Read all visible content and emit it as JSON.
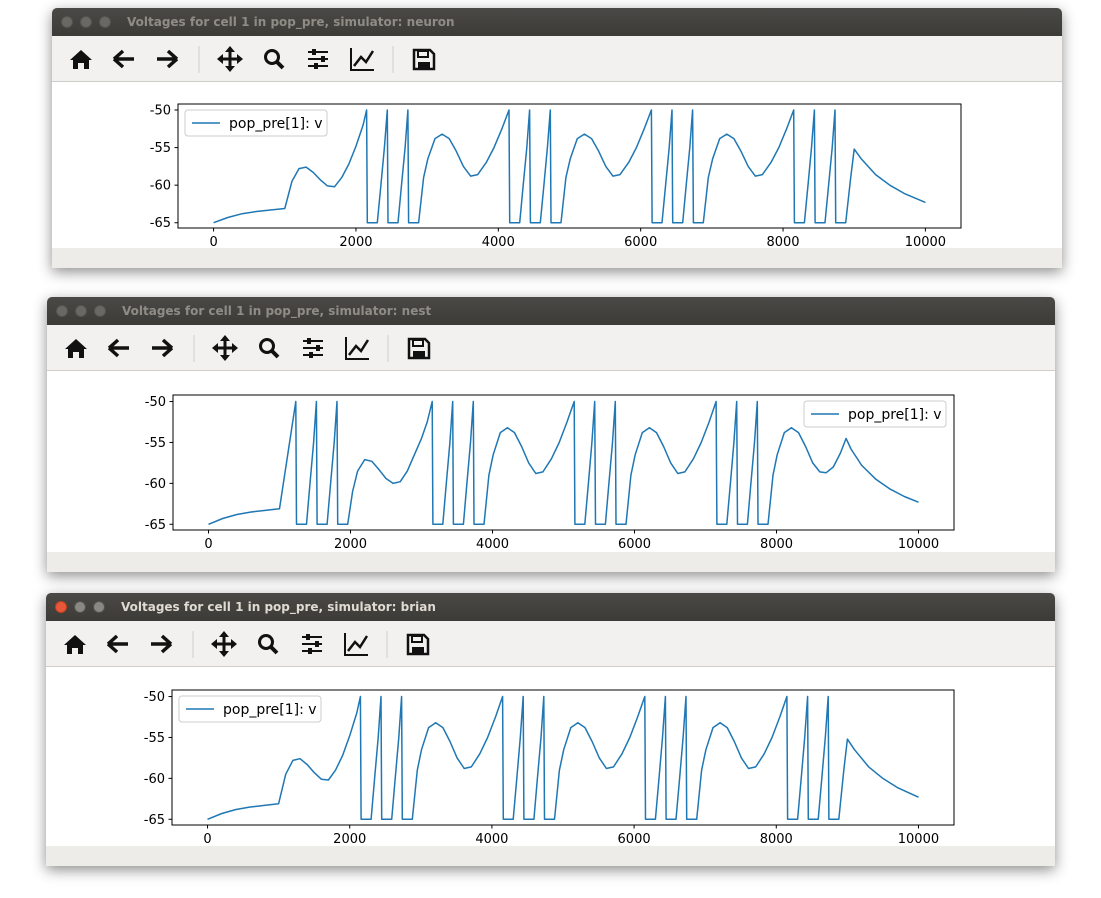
{
  "windows": [
    {
      "title": "Voltages for cell 1 in pop_pre, simulator: neuron"
    },
    {
      "title": "Voltages for cell 1 in pop_pre, simulator: nest"
    },
    {
      "title": "Voltages for cell 1 in pop_pre, simulator: brian"
    }
  ],
  "chart_data": [
    {
      "type": "line",
      "legend": "upper left",
      "x": [
        0,
        200,
        400,
        600,
        800,
        1000,
        1100,
        1200,
        1300,
        1400,
        1500,
        1600,
        1700,
        1800,
        1900,
        2000,
        2100,
        2150,
        2160,
        2300,
        2350,
        2400,
        2440,
        2450,
        2590,
        2640,
        2690,
        2730,
        2740,
        2880,
        2950,
        3010,
        3110,
        3210,
        3310,
        3410,
        3510,
        3610,
        3710,
        3830,
        3940,
        4050,
        4150,
        4160,
        4300,
        4350,
        4400,
        4440,
        4450,
        4590,
        4640,
        4690,
        4730,
        4740,
        4880,
        4950,
        5010,
        5110,
        5210,
        5310,
        5410,
        5510,
        5610,
        5710,
        5830,
        5940,
        6050,
        6150,
        6160,
        6300,
        6350,
        6400,
        6440,
        6450,
        6590,
        6640,
        6690,
        6730,
        6740,
        6880,
        6950,
        7010,
        7110,
        7210,
        7310,
        7410,
        7510,
        7610,
        7710,
        7830,
        7940,
        8050,
        8150,
        8160,
        8300,
        8350,
        8400,
        8440,
        8450,
        8590,
        8640,
        8690,
        8730,
        8740,
        8880,
        8950,
        9000,
        9100,
        9300,
        9500,
        9700,
        9900,
        10000
      ],
      "series": [
        {
          "name": "pop_pre[1]: v",
          "color": "#1f77b4",
          "values": [
            -65,
            -64.3,
            -63.8,
            -63.5,
            -63.3,
            -63.1,
            -59.5,
            -57.8,
            -57.6,
            -58.3,
            -59.3,
            -60.1,
            -60.2,
            -59,
            -57.2,
            -54.8,
            -52,
            -50,
            -65,
            -65,
            -60,
            -55,
            -50,
            -65,
            -65,
            -60,
            -55,
            -50,
            -65,
            -65,
            -59,
            -56.5,
            -53.8,
            -53.2,
            -53.8,
            -55.5,
            -57.5,
            -58.8,
            -58.6,
            -57,
            -55,
            -52.5,
            -50,
            -65,
            -65,
            -60,
            -55,
            -50,
            -65,
            -65,
            -60,
            -55,
            -50,
            -65,
            -65,
            -59,
            -56.5,
            -53.8,
            -53.2,
            -53.8,
            -55.5,
            -57.5,
            -58.8,
            -58.6,
            -57,
            -55,
            -52.5,
            -50,
            -65,
            -65,
            -60,
            -55,
            -50,
            -65,
            -65,
            -60,
            -55,
            -50,
            -65,
            -65,
            -59,
            -56.5,
            -53.8,
            -53.2,
            -53.8,
            -55.5,
            -57.5,
            -58.8,
            -58.6,
            -57,
            -55,
            -52.5,
            -50,
            -65,
            -65,
            -60,
            -55,
            -50,
            -65,
            -65,
            -60,
            -55,
            -50,
            -65,
            -65,
            -59,
            -55.2,
            -56.5,
            -58.6,
            -60,
            -61.1,
            -61.9,
            -62.3
          ]
        }
      ],
      "xlim": [
        -500,
        10500
      ],
      "xticks": [
        0,
        2000,
        4000,
        6000,
        8000,
        10000
      ],
      "ylim": [
        -65.7,
        -49.2
      ],
      "yticks": [
        -65,
        -60,
        -55,
        -50
      ]
    },
    {
      "type": "line",
      "legend": "upper right",
      "x": [
        0,
        200,
        400,
        600,
        800,
        1000,
        1230,
        1240,
        1380,
        1430,
        1480,
        1520,
        1530,
        1670,
        1720,
        1770,
        1810,
        1820,
        1960,
        2030,
        2100,
        2200,
        2300,
        2400,
        2500,
        2600,
        2700,
        2800,
        2900,
        3000,
        3080,
        3150,
        3160,
        3300,
        3350,
        3400,
        3440,
        3450,
        3590,
        3640,
        3690,
        3730,
        3740,
        3880,
        3950,
        4010,
        4110,
        4210,
        4310,
        4410,
        4510,
        4610,
        4710,
        4830,
        4940,
        5050,
        5150,
        5160,
        5300,
        5350,
        5400,
        5440,
        5450,
        5590,
        5640,
        5690,
        5730,
        5740,
        5880,
        5950,
        6010,
        6110,
        6210,
        6310,
        6410,
        6510,
        6610,
        6710,
        6830,
        6940,
        7050,
        7150,
        7160,
        7300,
        7350,
        7400,
        7440,
        7450,
        7590,
        7640,
        7690,
        7730,
        7740,
        7880,
        7950,
        8010,
        8110,
        8210,
        8310,
        8410,
        8510,
        8610,
        8700,
        8800,
        8900,
        8980,
        9050,
        9200,
        9400,
        9600,
        9800,
        10000
      ],
      "series": [
        {
          "name": "pop_pre[1]: v",
          "color": "#1f77b4",
          "values": [
            -65,
            -64.3,
            -63.8,
            -63.5,
            -63.3,
            -63.1,
            -50,
            -65,
            -65,
            -60,
            -55,
            -50,
            -65,
            -65,
            -60,
            -55,
            -50,
            -65,
            -65,
            -61,
            -58.5,
            -57.1,
            -57.3,
            -58.3,
            -59.4,
            -60,
            -59.8,
            -58.5,
            -56.5,
            -54.5,
            -52.5,
            -50,
            -65,
            -65,
            -60,
            -55,
            -50,
            -65,
            -65,
            -60,
            -55,
            -50,
            -65,
            -65,
            -59,
            -56.5,
            -53.8,
            -53.2,
            -53.8,
            -55.5,
            -57.5,
            -58.8,
            -58.6,
            -57,
            -55,
            -52.5,
            -50,
            -65,
            -65,
            -60,
            -55,
            -50,
            -65,
            -65,
            -60,
            -55,
            -50,
            -65,
            -65,
            -59,
            -56.5,
            -53.8,
            -53.2,
            -53.8,
            -55.5,
            -57.5,
            -58.8,
            -58.6,
            -57,
            -55,
            -52.5,
            -50,
            -65,
            -65,
            -60,
            -55,
            -50,
            -65,
            -65,
            -60,
            -55,
            -50,
            -65,
            -65,
            -59,
            -56.5,
            -53.8,
            -53.2,
            -53.8,
            -55.5,
            -57.5,
            -58.6,
            -58.7,
            -58,
            -56.3,
            -54.5,
            -55.8,
            -57.8,
            -59.5,
            -60.7,
            -61.6,
            -62.3
          ]
        }
      ],
      "xlim": [
        -500,
        10500
      ],
      "xticks": [
        0,
        2000,
        4000,
        6000,
        8000,
        10000
      ],
      "ylim": [
        -65.7,
        -49.2
      ],
      "yticks": [
        -65,
        -60,
        -55,
        -50
      ]
    },
    {
      "type": "line",
      "legend": "upper left",
      "x": [
        0,
        200,
        400,
        600,
        800,
        1000,
        1100,
        1200,
        1300,
        1400,
        1500,
        1600,
        1700,
        1800,
        1900,
        2000,
        2100,
        2150,
        2160,
        2300,
        2350,
        2400,
        2440,
        2450,
        2590,
        2640,
        2690,
        2730,
        2740,
        2880,
        2950,
        3010,
        3110,
        3210,
        3310,
        3410,
        3510,
        3610,
        3710,
        3830,
        3940,
        4050,
        4150,
        4160,
        4300,
        4350,
        4400,
        4440,
        4450,
        4590,
        4640,
        4690,
        4730,
        4740,
        4880,
        4950,
        5010,
        5110,
        5210,
        5310,
        5410,
        5510,
        5610,
        5710,
        5830,
        5940,
        6050,
        6150,
        6160,
        6300,
        6350,
        6400,
        6440,
        6450,
        6590,
        6640,
        6690,
        6730,
        6740,
        6880,
        6950,
        7010,
        7110,
        7210,
        7310,
        7410,
        7510,
        7610,
        7710,
        7830,
        7940,
        8050,
        8150,
        8160,
        8300,
        8350,
        8400,
        8440,
        8450,
        8590,
        8640,
        8690,
        8730,
        8740,
        8880,
        8950,
        9000,
        9100,
        9300,
        9500,
        9700,
        9900,
        10000
      ],
      "series": [
        {
          "name": "pop_pre[1]: v",
          "color": "#1f77b4",
          "values": [
            -65,
            -64.3,
            -63.8,
            -63.5,
            -63.3,
            -63.1,
            -59.5,
            -57.8,
            -57.6,
            -58.3,
            -59.3,
            -60.1,
            -60.2,
            -59,
            -57.2,
            -54.8,
            -52,
            -50,
            -65,
            -65,
            -60,
            -55,
            -50,
            -65,
            -65,
            -60,
            -55,
            -50,
            -65,
            -65,
            -59,
            -56.5,
            -53.8,
            -53.2,
            -53.8,
            -55.5,
            -57.5,
            -58.8,
            -58.6,
            -57,
            -55,
            -52.5,
            -50,
            -65,
            -65,
            -60,
            -55,
            -50,
            -65,
            -65,
            -60,
            -55,
            -50,
            -65,
            -65,
            -59,
            -56.5,
            -53.8,
            -53.2,
            -53.8,
            -55.5,
            -57.5,
            -58.8,
            -58.6,
            -57,
            -55,
            -52.5,
            -50,
            -65,
            -65,
            -60,
            -55,
            -50,
            -65,
            -65,
            -60,
            -55,
            -50,
            -65,
            -65,
            -59,
            -56.5,
            -53.8,
            -53.2,
            -53.8,
            -55.5,
            -57.5,
            -58.8,
            -58.6,
            -57,
            -55,
            -52.5,
            -50,
            -65,
            -65,
            -60,
            -55,
            -50,
            -65,
            -65,
            -60,
            -55,
            -50,
            -65,
            -65,
            -59,
            -55.2,
            -56.5,
            -58.6,
            -60,
            -61.1,
            -61.9,
            -62.3
          ]
        }
      ],
      "xlim": [
        -500,
        10500
      ],
      "xticks": [
        0,
        2000,
        4000,
        6000,
        8000,
        10000
      ],
      "ylim": [
        -65.7,
        -49.2
      ],
      "yticks": [
        -65,
        -60,
        -55,
        -50
      ]
    }
  ]
}
